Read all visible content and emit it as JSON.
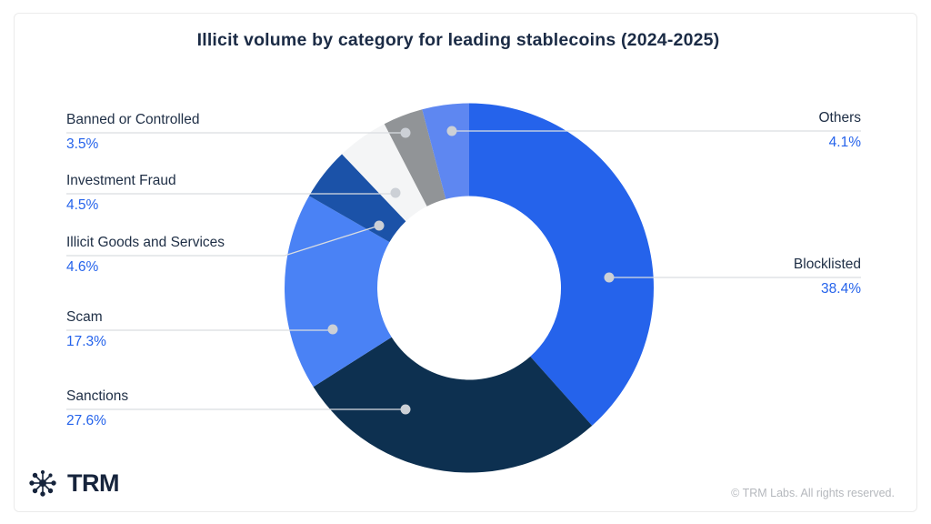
{
  "card": {
    "title": "Illicit volume by category for leading stablecoins (2024-2025)",
    "footer": "© TRM Labs. All rights reserved.",
    "brand": {
      "wordmark": "TRM",
      "icon": "trm-network-icon"
    }
  },
  "colors": {
    "background": "#ffffff",
    "card_border": "#ebebeb",
    "title_text": "#1b2b45",
    "label_text": "#1e2e45",
    "pct_text": "#2563eb",
    "leader_line": "#dadde1",
    "leader_dot": "#ccd0d6",
    "footer_text": "#b5b8bd",
    "brand_navy": "#16243c"
  },
  "chart_data": {
    "type": "pie",
    "subtype": "donut",
    "title": "Illicit volume by category for leading stablecoins (2024-2025)",
    "start_angle_deg": 0,
    "direction": "clockwise",
    "unit": "%",
    "legend_position": "callout-labels",
    "items": [
      {
        "label": "Blocklisted",
        "value": 38.4,
        "pct_label": "38.4%",
        "color": "#2563eb",
        "label_side": "right"
      },
      {
        "label": "Sanctions",
        "value": 27.6,
        "pct_label": "27.6%",
        "color": "#0d3050",
        "label_side": "left"
      },
      {
        "label": "Scam",
        "value": 17.3,
        "pct_label": "17.3%",
        "color": "#4a82f5",
        "label_side": "left"
      },
      {
        "label": "Illicit Goods and Services",
        "value": 4.6,
        "pct_label": "4.6%",
        "color": "#1b52a8",
        "label_side": "left"
      },
      {
        "label": "Investment Fraud",
        "value": 4.5,
        "pct_label": "4.5%",
        "color": "#f4f5f6",
        "label_side": "left"
      },
      {
        "label": "Banned or Controlled",
        "value": 3.5,
        "pct_label": "3.5%",
        "color": "#919497",
        "label_side": "left"
      },
      {
        "label": "Others",
        "value": 4.1,
        "pct_label": "4.1%",
        "color": "#5e87f1",
        "label_side": "right"
      }
    ]
  }
}
